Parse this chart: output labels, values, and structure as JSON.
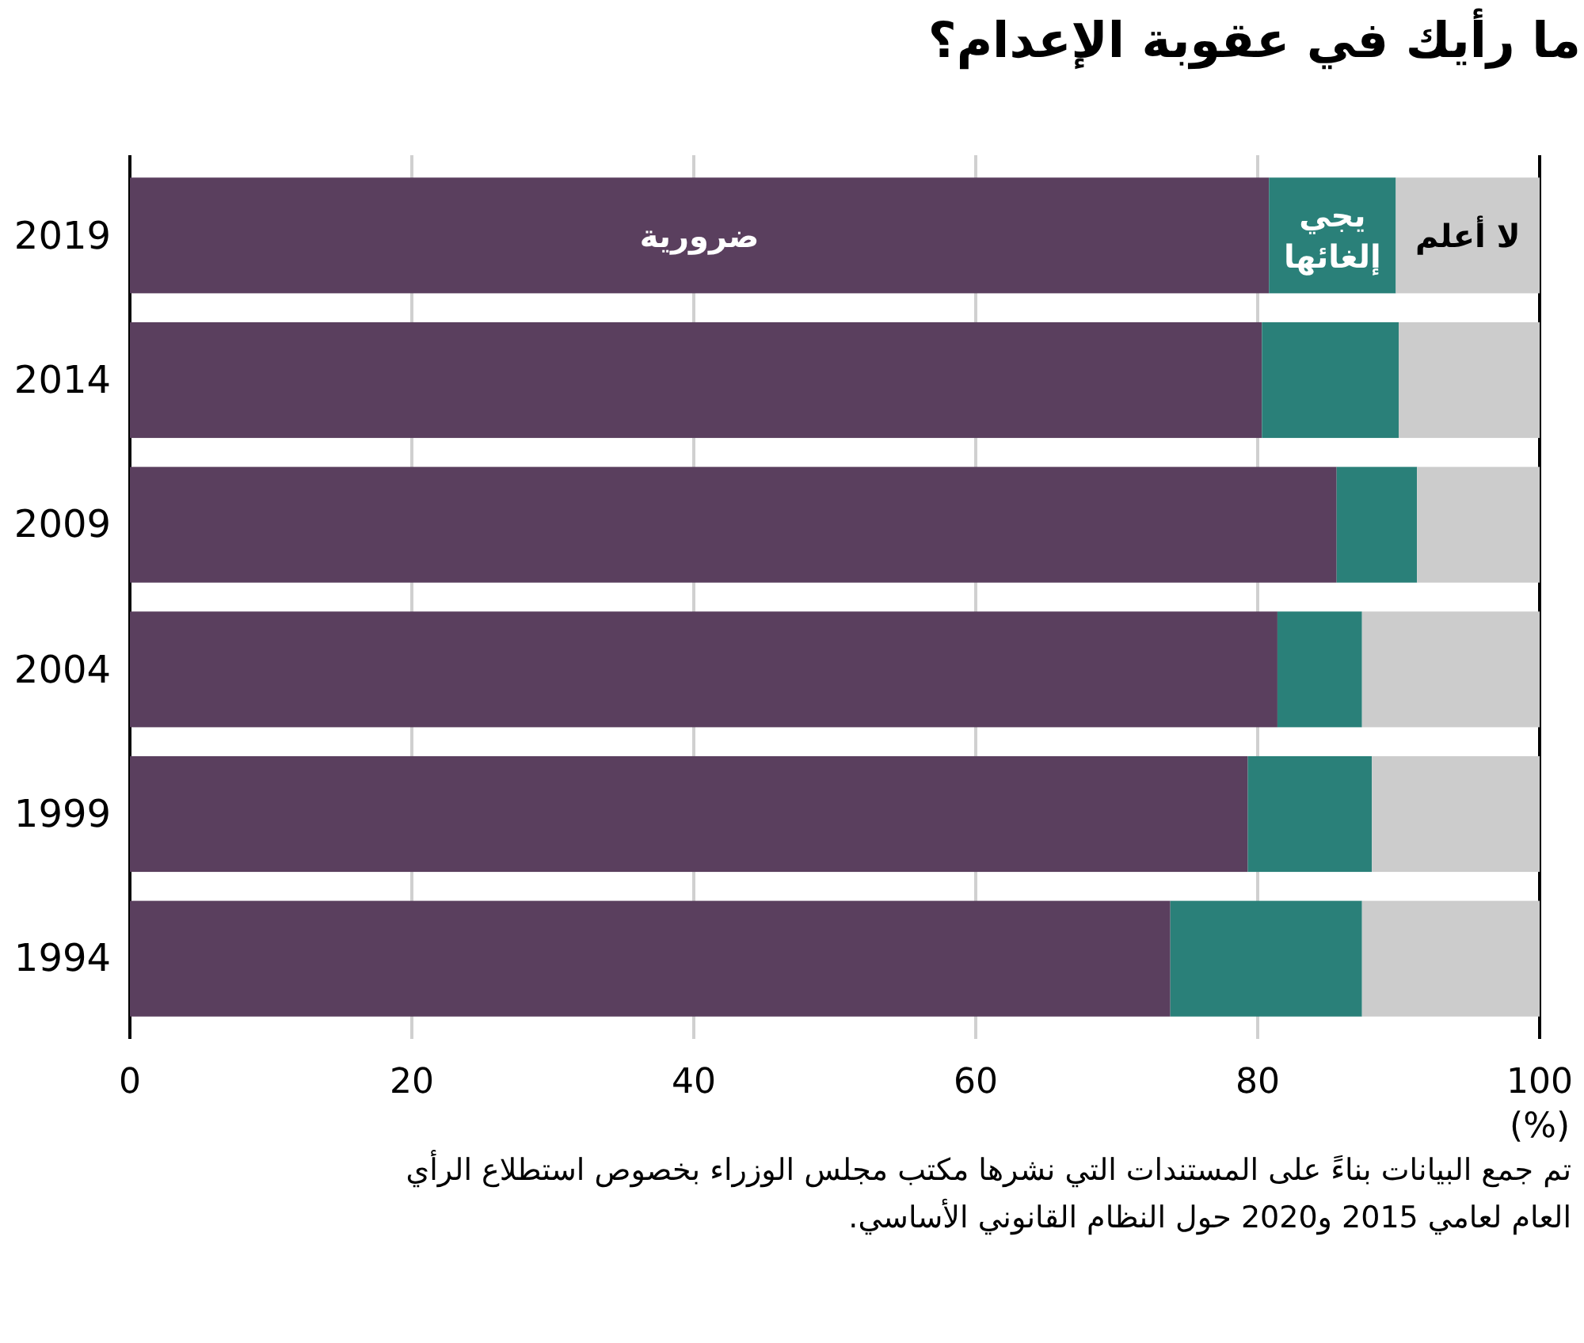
{
  "chart_data": {
    "type": "bar",
    "orientation": "horizontal",
    "stacked": true,
    "title": "ما رأيك في عقوبة الإعدام؟",
    "categories": [
      "2019",
      "2014",
      "2009",
      "2004",
      "1999",
      "1994"
    ],
    "series": [
      {
        "name": "ضرورية",
        "color": "#5a3f5e",
        "values": [
          80.8,
          80.3,
          85.6,
          81.4,
          79.3,
          73.8
        ]
      },
      {
        "name": "يجي إلغائها",
        "color": "#2a8079",
        "values": [
          9.0,
          9.7,
          5.7,
          6.0,
          8.8,
          13.6
        ]
      },
      {
        "name": "لا أعلم",
        "color": "#cccccc",
        "values": [
          10.2,
          10.0,
          8.7,
          12.6,
          11.9,
          12.6
        ]
      }
    ],
    "xlim": [
      0,
      100
    ],
    "xticks": [
      0,
      20,
      40,
      60,
      80,
      100
    ],
    "xlabel": "(%)",
    "grid": "x",
    "annotations": [
      "تم جمع البيانات بناءً على المستندات التي نشرها مكتب مجلس الوزراء بخصوص استطلاع الرأي العام لعامي 2015 و2020 حول النظام القانوني الأساسي."
    ]
  }
}
